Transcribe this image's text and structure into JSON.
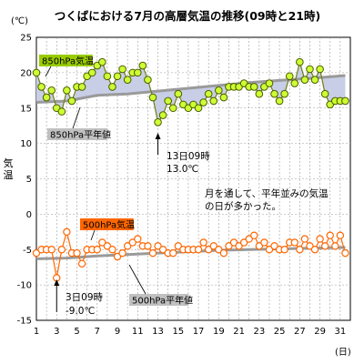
{
  "chart_data": {
    "type": "line",
    "title": "つくばにおける7月の高層気温の推移(09時と21時)",
    "ylabel_unit": "(℃)",
    "ylabel": "気温",
    "xlabel_unit": "(日)",
    "ylim": [
      -15,
      25
    ],
    "yticks": [
      "25",
      "20",
      "15",
      "10",
      "5",
      "0",
      "-5",
      "-10",
      "-15"
    ],
    "xlim": [
      1,
      32
    ],
    "xticks": [
      "1",
      "3",
      "5",
      "7",
      "9",
      "11",
      "13",
      "15",
      "17",
      "19",
      "21",
      "23",
      "25",
      "27",
      "29",
      "31"
    ],
    "grid": true,
    "series": [
      {
        "name": "850hPa気温",
        "color": "#ccff33",
        "x": [
          1,
          1.5,
          2,
          2.5,
          3,
          3.5,
          4,
          4.5,
          5,
          5.5,
          6,
          6.5,
          7,
          7.5,
          8,
          8.5,
          9,
          9.5,
          10,
          10.5,
          11,
          11.5,
          12,
          12.5,
          13,
          13.5,
          14,
          14.5,
          15,
          15.5,
          16,
          16.5,
          17,
          17.5,
          18,
          18.5,
          19,
          19.5,
          20,
          20.5,
          21,
          21.5,
          22,
          22.5,
          23,
          23.5,
          24,
          24.5,
          25,
          25.5,
          26,
          26.5,
          27,
          27.5,
          28,
          28.5,
          29,
          29.5,
          30,
          30.5,
          31,
          31.5
        ],
        "values": [
          20,
          18,
          16.5,
          17.5,
          15,
          14.5,
          17.5,
          16,
          18,
          18,
          19.5,
          20,
          21,
          21.5,
          19.5,
          18,
          19.5,
          20.5,
          19,
          20,
          20,
          21,
          19,
          16.5,
          13,
          14,
          16,
          15,
          17,
          15.5,
          15,
          15.5,
          15,
          15.8,
          17,
          16,
          17.5,
          16.5,
          18,
          18,
          18,
          18.5,
          18,
          18,
          17,
          18,
          18.5,
          17,
          16,
          17,
          19.5,
          18.5,
          21.5,
          19,
          20.5,
          19,
          20.5,
          17,
          15.5,
          16,
          16,
          16
        ]
      },
      {
        "name": "850hPa平年値",
        "color": "#999999",
        "x": [
          1,
          4,
          7,
          10,
          13,
          16,
          19,
          22,
          25,
          28,
          31.5
        ],
        "values": [
          15.8,
          16,
          16.8,
          17,
          17.4,
          17.8,
          18.2,
          18.6,
          18.9,
          19.2,
          19.6
        ]
      },
      {
        "name": "500hPa気温",
        "color": "#ff6600",
        "x": [
          1,
          1.5,
          2,
          2.5,
          3,
          3.5,
          4,
          4.5,
          5,
          5.5,
          6,
          6.5,
          7,
          7.5,
          8,
          8.5,
          9,
          9.5,
          10,
          10.5,
          11,
          11.5,
          12,
          12.5,
          13,
          13.5,
          14,
          14.5,
          15,
          15.5,
          16,
          16.5,
          17,
          17.5,
          18,
          18.5,
          19,
          19.5,
          20,
          20.5,
          21,
          21.5,
          22,
          22.5,
          23,
          23.5,
          24,
          24.5,
          25,
          25.5,
          26,
          26.5,
          27,
          27.5,
          28,
          28.5,
          29,
          29.5,
          30,
          30.5,
          31,
          31.5
        ],
        "values": [
          -5.5,
          -5,
          -5,
          -5,
          -9,
          -5,
          -2.5,
          -5.5,
          -5.5,
          -7,
          -5,
          -5,
          -5,
          -4,
          -4.5,
          -5,
          -6,
          -5.5,
          -4.5,
          -4,
          -3.5,
          -4.5,
          -4.5,
          -5.5,
          -4.5,
          -5,
          -5.5,
          -5.5,
          -4.5,
          -5,
          -5,
          -5,
          -5,
          -4,
          -5,
          -4.5,
          -5,
          -5.5,
          -4.5,
          -4,
          -4.5,
          -4,
          -3.5,
          -3,
          -4.5,
          -4,
          -5,
          -4.5,
          -5,
          -5,
          -4,
          -4,
          -5,
          -3.5,
          -4.5,
          -5,
          -3.5,
          -4.5,
          -3,
          -4.5,
          -3,
          -5.5
        ]
      },
      {
        "name": "500hPa平年値",
        "color": "#999999",
        "x": [
          1,
          4,
          7,
          10,
          13,
          16,
          19,
          22,
          25,
          28,
          31.5
        ],
        "values": [
          -6.3,
          -6.2,
          -5.9,
          -5.7,
          -5.5,
          -5.3,
          -5.1,
          -5,
          -4.9,
          -4.8,
          -4.7
        ]
      }
    ],
    "annotations": [
      {
        "id": "a850",
        "line1": "13日09時",
        "line2": "13.0℃"
      },
      {
        "id": "a500",
        "line1": "3日09時",
        "line2": "-9.0℃"
      },
      {
        "id": "note",
        "line1": "月を通して、平年並みの気温",
        "line2": "の日が多かった。"
      }
    ]
  }
}
